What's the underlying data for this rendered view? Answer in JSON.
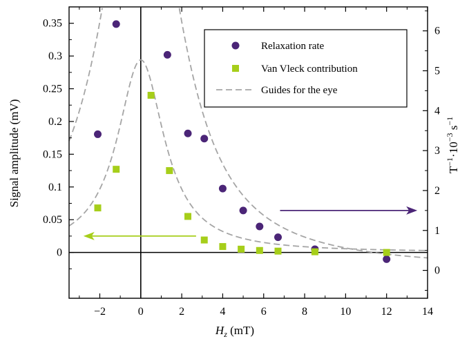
{
  "chart_data": {
    "type": "scatter",
    "xlabel": {
      "main": "H",
      "sub": "z",
      "unit": " (mT)"
    },
    "ylabel_left": "Signal amplitude (mV)",
    "ylabel_right": {
      "base": "T",
      "sup1": "−1",
      "mid": "·10",
      "sup2": "−3",
      "tail": " s",
      "sup3": "−1"
    },
    "xlim": [
      -3.5,
      14
    ],
    "ylim_left": [
      -0.07,
      0.375
    ],
    "ylim_right": [
      -0.6989,
      6.6
    ],
    "x_ticks": [
      -2,
      0,
      2,
      4,
      6,
      8,
      10,
      12,
      14
    ],
    "x_tick_labels": [
      "−2",
      "0",
      "2",
      "4",
      "6",
      "8",
      "10",
      "12",
      "14"
    ],
    "y_left_ticks": [
      0,
      0.05,
      0.1,
      0.15,
      0.2,
      0.25,
      0.3,
      0.35
    ],
    "y_left_tick_labels": [
      "0",
      "0.05",
      "0.1",
      "0.15",
      "0.2",
      "0.25",
      "0.3",
      "0.35"
    ],
    "y_right_ticks": [
      0,
      1,
      2,
      3,
      4,
      5,
      6
    ],
    "y_right_tick_labels": [
      "0",
      "1",
      "2",
      "3",
      "4",
      "5",
      "6"
    ],
    "legend_position": "top-right",
    "series": [
      {
        "name": "Relaxation rate",
        "marker": "circle",
        "color": "#4b2577",
        "axis": "right",
        "points": [
          [
            -2.1,
            3.41
          ],
          [
            -1.2,
            6.17
          ],
          [
            1.3,
            5.4
          ],
          [
            2.3,
            3.43
          ],
          [
            3.1,
            3.3
          ],
          [
            4.0,
            2.05
          ],
          [
            5.0,
            1.5
          ],
          [
            5.8,
            1.1
          ],
          [
            6.7,
            0.83
          ],
          [
            8.5,
            0.53
          ],
          [
            12.0,
            0.28
          ]
        ]
      },
      {
        "name": "Van Vleck contribution",
        "marker": "square",
        "color": "#a6ce1a",
        "axis": "left",
        "points": [
          [
            -2.1,
            0.068
          ],
          [
            -1.2,
            0.127
          ],
          [
            0.5,
            0.24
          ],
          [
            1.4,
            0.125
          ],
          [
            2.3,
            0.055
          ],
          [
            3.1,
            0.019
          ],
          [
            4.0,
            0.009
          ],
          [
            4.9,
            0.005
          ],
          [
            5.8,
            0.003
          ],
          [
            6.7,
            0.002
          ],
          [
            8.5,
            0.001
          ],
          [
            12.0,
            0.0
          ]
        ]
      },
      {
        "name": "Guides for the eye",
        "marker": "dashed-line",
        "color": "#a5a5a5"
      }
    ],
    "colors": {
      "purple_arrow": "#4b2577",
      "green_arrow": "#a6ce1a",
      "guide_line": "#a5a5a5",
      "axis": "#000000"
    }
  }
}
